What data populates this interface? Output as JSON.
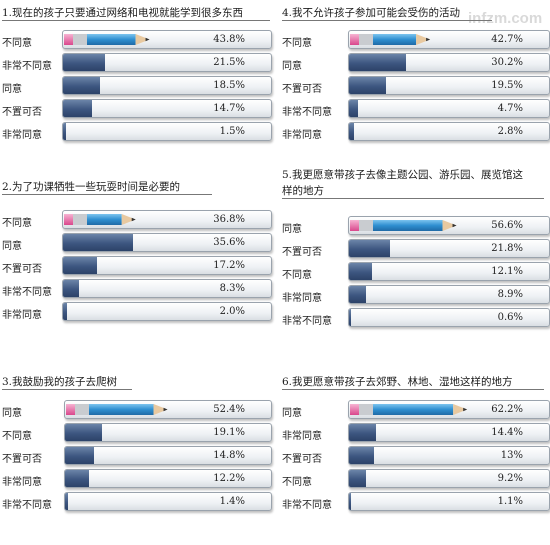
{
  "watermark": "infzm.com",
  "colors": {
    "bar_dark": "#3d5680",
    "pencil_blue": "#2f8fd0",
    "pencil_pink": "#e36fa5",
    "pencil_tip": "#e8c9a0"
  },
  "chart_data": [
    {
      "type": "bar",
      "title": "1.现在的孩子只要通过网络和电视就能学到很多东西",
      "categories": [
        "不同意",
        "非常不同意",
        "同意",
        "不置可否",
        "非常同意"
      ],
      "values": [
        43.8,
        21.5,
        18.5,
        14.7,
        1.5
      ],
      "labels": [
        "43.8%",
        "21.5%",
        "18.5%",
        "14.7%",
        "1.5%"
      ]
    },
    {
      "type": "bar",
      "title": "2.为了功课牺牲一些玩耍时间是必要的",
      "categories": [
        "不同意",
        "同意",
        "不置可否",
        "非常不同意",
        "非常同意"
      ],
      "values": [
        36.8,
        35.6,
        17.2,
        8.3,
        2.0
      ],
      "labels": [
        "36.8%",
        "35.6%",
        "17.2%",
        "8.3%",
        "2.0%"
      ]
    },
    {
      "type": "bar",
      "title": "3.我鼓励我的孩子去爬树",
      "categories": [
        "同意",
        "不同意",
        "不置可否",
        "非常同意",
        "非常不同意"
      ],
      "values": [
        52.4,
        19.1,
        14.8,
        12.2,
        1.4
      ],
      "labels": [
        "52.4%",
        "19.1%",
        "14.8%",
        "12.2%",
        "1.4%"
      ]
    },
    {
      "type": "bar",
      "title": "4.我不允许孩子参加可能会受伤的活动",
      "categories": [
        "不同意",
        "同意",
        "不置可否",
        "非常不同意",
        "非常同意"
      ],
      "values": [
        42.7,
        30.2,
        19.5,
        4.7,
        2.8
      ],
      "labels": [
        "42.7%",
        "30.2%",
        "19.5%",
        "4.7%",
        "2.8%"
      ]
    },
    {
      "type": "bar",
      "title": [
        "5.我更愿意带孩子去像主题公园、游乐园、展览馆这",
        "样的地方"
      ],
      "categories": [
        "同意",
        "不置可否",
        "不同意",
        "非常同意",
        "非常不同意"
      ],
      "values": [
        56.6,
        21.8,
        12.1,
        8.9,
        0.6
      ],
      "labels": [
        "56.6%",
        "21.8%",
        "12.1%",
        "8.9%",
        "0.6%"
      ]
    },
    {
      "type": "bar",
      "title": "6.我更愿意带孩子去郊野、林地、湿地这样的地方",
      "categories": [
        "同意",
        "非常同意",
        "不置可否",
        "不同意",
        "非常不同意"
      ],
      "values": [
        62.2,
        14.4,
        13,
        9.2,
        1.1
      ],
      "labels": [
        "62.2%",
        "14.4%",
        "13%",
        "9.2%",
        "1.1%"
      ]
    }
  ]
}
